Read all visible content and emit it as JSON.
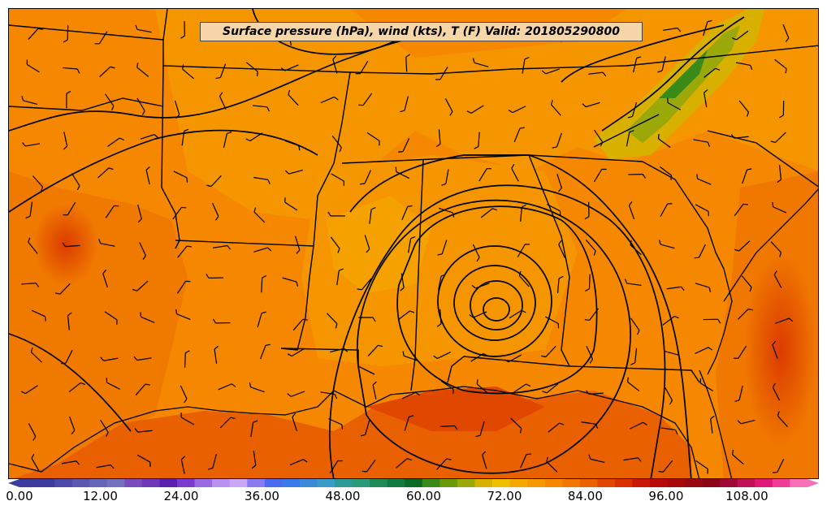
{
  "title": "Surface pressure (hPa), wind (kts), T (F) Valid: 201805290800",
  "colorbar": {
    "min": 0,
    "max": 117,
    "step": 3,
    "extend": "both",
    "tick_labels": [
      "0.00",
      "12.00",
      "24.00",
      "36.00",
      "48.00",
      "60.00",
      "72.00",
      "84.00",
      "96.00",
      "108.00"
    ],
    "colors": [
      "#3c3ba0",
      "#3c3ba0",
      "#4b4aa8",
      "#5a58b0",
      "#6666b8",
      "#7272bf",
      "#7a4bbc",
      "#6f38b8",
      "#5a1eb0",
      "#7a3ccc",
      "#9a6ae0",
      "#b892f0",
      "#c8a8f4",
      "#8a7cf0",
      "#4a6af0",
      "#3a7ae8",
      "#3a8ad8",
      "#3a9ac8",
      "#2a9a98",
      "#2a9a78",
      "#1e8a58",
      "#127a40",
      "#0a6a28",
      "#3a8a1a",
      "#6a9a0a",
      "#9aa80a",
      "#d8b000",
      "#f0c000",
      "#f5a800",
      "#f59800",
      "#f58800",
      "#f07800",
      "#e86000",
      "#e04800",
      "#d83000",
      "#c81808",
      "#b80808",
      "#a80808",
      "#980810",
      "#880818",
      "#a00838",
      "#c01058",
      "#e01878",
      "#f03c98",
      "#f870b8"
    ]
  },
  "icons": {
    "wind-barb": "wind-barb-icon"
  }
}
